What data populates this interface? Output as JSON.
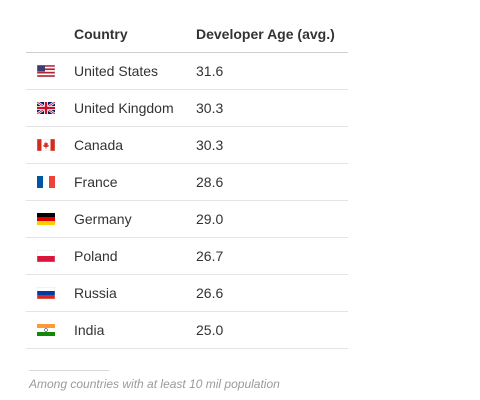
{
  "table": {
    "headers": {
      "country": "Country",
      "age": "Developer Age (avg.)"
    },
    "rows": [
      {
        "country": "United States",
        "age": "31.6",
        "flag_icon": "us-flag-icon"
      },
      {
        "country": "United Kingdom",
        "age": "30.3",
        "flag_icon": "uk-flag-icon"
      },
      {
        "country": "Canada",
        "age": "30.3",
        "flag_icon": "canada-flag-icon"
      },
      {
        "country": "France",
        "age": "28.6",
        "flag_icon": "france-flag-icon"
      },
      {
        "country": "Germany",
        "age": "29.0",
        "flag_icon": "germany-flag-icon"
      },
      {
        "country": "Poland",
        "age": "26.7",
        "flag_icon": "poland-flag-icon"
      },
      {
        "country": "Russia",
        "age": "26.6",
        "flag_icon": "russia-flag-icon"
      },
      {
        "country": "India",
        "age": "25.0",
        "flag_icon": "india-flag-icon"
      }
    ]
  },
  "footnote": "Among countries with at least 10 mil population"
}
